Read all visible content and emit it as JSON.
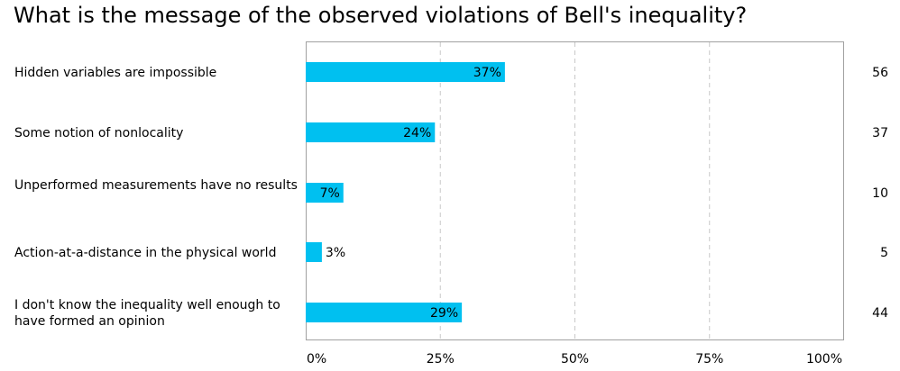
{
  "chart_data": {
    "type": "bar",
    "orientation": "horizontal",
    "title": "What is the message of the observed violations of Bell's inequality?",
    "categories": [
      "Hidden variables are impossible",
      "Some notion of nonlocality",
      "Unperformed measurements have no results",
      "Action-at-a-distance in the physical world",
      "I don't know the inequality well enough to have formed an opinion"
    ],
    "values": [
      37,
      24,
      7,
      3,
      29
    ],
    "value_labels": [
      "37%",
      "24%",
      "7%",
      "3%",
      "29%"
    ],
    "counts": [
      "56",
      "37",
      "10",
      "5",
      "44"
    ],
    "xlim": [
      0,
      100
    ],
    "x_ticks": [
      "0%",
      "25%",
      "50%",
      "75%",
      "100%"
    ],
    "grid": true,
    "legend": "none",
    "bar_color": "#00c0f0"
  }
}
